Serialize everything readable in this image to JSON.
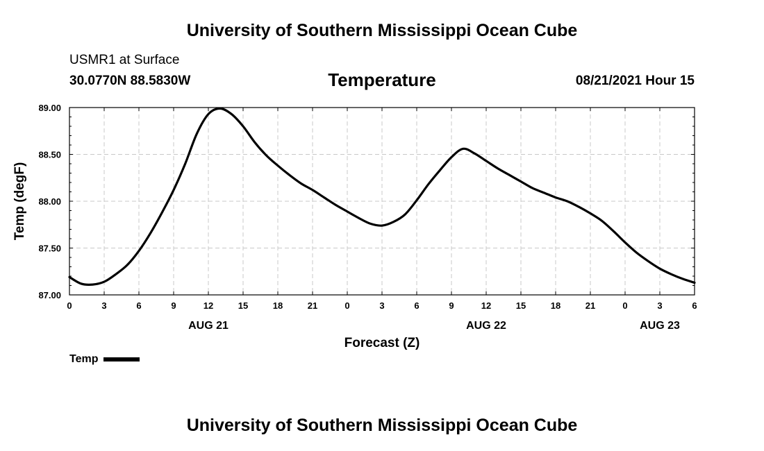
{
  "header": {
    "title": "University of Southern Mississippi Ocean Cube",
    "station": "USMR1 at Surface",
    "coords": "30.0770N  88.5830W",
    "variable": "Temperature",
    "datetime": "08/21/2021 Hour 15"
  },
  "footer": {
    "title": "University of Southern Mississippi Ocean Cube"
  },
  "legend": {
    "label": "Temp"
  },
  "chart_data": {
    "type": "line",
    "title": "Temperature",
    "xlabel": "Forecast (Z)",
    "ylabel": "Temp (degF)",
    "xlim": [
      0,
      54
    ],
    "ylim": [
      87.0,
      89.0
    ],
    "grid": true,
    "legend_position": "bottom-left",
    "x_ticks": [
      0,
      3,
      6,
      9,
      12,
      15,
      18,
      21,
      24,
      27,
      30,
      33,
      36,
      39,
      42,
      45,
      48,
      51,
      54
    ],
    "x_tick_labels": [
      "0",
      "3",
      "6",
      "9",
      "12",
      "15",
      "18",
      "21",
      "0",
      "3",
      "6",
      "9",
      "12",
      "15",
      "18",
      "21",
      "0",
      "3",
      "6"
    ],
    "y_ticks": [
      87.0,
      87.5,
      88.0,
      88.5,
      89.0
    ],
    "y_tick_labels": [
      "87.00",
      "87.50",
      "88.00",
      "88.50",
      "89.00"
    ],
    "date_labels": [
      {
        "x": 12,
        "label": "AUG 21"
      },
      {
        "x": 36,
        "label": "AUG 22"
      },
      {
        "x": 51,
        "label": "AUG 23"
      }
    ],
    "series": [
      {
        "name": "Temp",
        "color": "#000000",
        "x": [
          0,
          1,
          2,
          3,
          4,
          5,
          6,
          7,
          8,
          9,
          10,
          11,
          12,
          13,
          14,
          15,
          16,
          17,
          18,
          19,
          20,
          21,
          22,
          23,
          24,
          25,
          26,
          27,
          28,
          29,
          30,
          31,
          32,
          33,
          34,
          35,
          36,
          37,
          38,
          39,
          40,
          41,
          42,
          43,
          44,
          45,
          46,
          47,
          48,
          49,
          50,
          51,
          52,
          53,
          54
        ],
        "y": [
          87.19,
          87.12,
          87.11,
          87.14,
          87.22,
          87.32,
          87.47,
          87.66,
          87.88,
          88.12,
          88.4,
          88.72,
          88.93,
          88.99,
          88.93,
          88.8,
          88.63,
          88.49,
          88.38,
          88.28,
          88.19,
          88.12,
          88.04,
          87.96,
          87.89,
          87.82,
          87.76,
          87.74,
          87.78,
          87.86,
          88.01,
          88.18,
          88.33,
          88.47,
          88.56,
          88.51,
          88.43,
          88.35,
          88.28,
          88.21,
          88.14,
          88.09,
          88.04,
          88.0,
          87.94,
          87.87,
          87.79,
          87.68,
          87.56,
          87.45,
          87.36,
          87.28,
          87.22,
          87.17,
          87.13
        ]
      }
    ]
  }
}
